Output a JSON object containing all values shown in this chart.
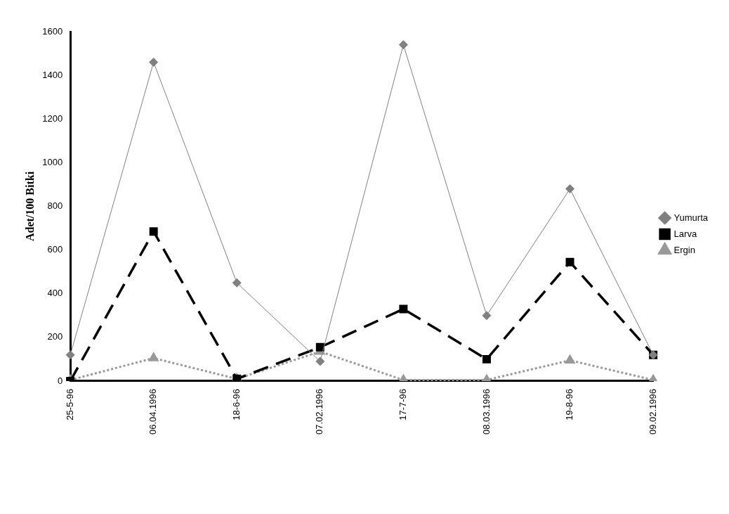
{
  "chart_data": {
    "type": "line",
    "ylabel": "Adet/100 Bitki",
    "categories": [
      "25-5-96",
      "06.04.1996",
      "18-6-96",
      "07.02.1996",
      "17-7-96",
      "08.03.1996",
      "19-8-96",
      "09.02.1996"
    ],
    "series": [
      {
        "name": "Yumurta",
        "color": "#808080",
        "values": [
          120,
          1460,
          450,
          90,
          1540,
          300,
          880,
          120
        ],
        "marker": "diamond",
        "line_style": "solid"
      },
      {
        "name": "Larva",
        "color": "#000000",
        "values": [
          0,
          685,
          10,
          155,
          330,
          100,
          545,
          120
        ],
        "marker": "square",
        "line_style": "dashed"
      },
      {
        "name": "Ergin",
        "color": "#999999",
        "values": [
          5,
          105,
          10,
          135,
          5,
          5,
          95,
          5
        ],
        "marker": "triangle",
        "line_style": "dotted"
      }
    ],
    "ylim": [
      0,
      1600
    ],
    "yticks": [
      0,
      200,
      400,
      600,
      800,
      1000,
      1200,
      1400,
      1600
    ],
    "grid": false,
    "legend": "right"
  }
}
